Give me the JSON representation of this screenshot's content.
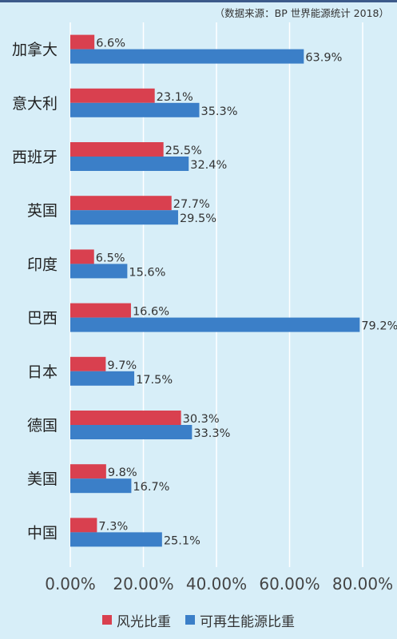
{
  "source_note": "（数据来源：BP 世界能源统计 2018）",
  "colors": {
    "wind": "#d9404f",
    "renewable": "#3b7fc8",
    "grid": "#ffffff",
    "background": "#d7eef8"
  },
  "chart_data": {
    "type": "bar",
    "orientation": "horizontal",
    "categories": [
      "加拿大",
      "意大利",
      "西班牙",
      "英国",
      "印度",
      "巴西",
      "日本",
      "德国",
      "美国",
      "中国"
    ],
    "series": [
      {
        "name": "风光比重",
        "values": [
          6.6,
          23.1,
          25.5,
          27.7,
          6.5,
          16.6,
          9.7,
          30.3,
          9.8,
          7.3
        ],
        "labels": [
          "6.6%",
          "23.1%",
          "25.5%",
          "27.7%",
          "6.5%",
          "16.6%",
          "9.7%",
          "30.3%",
          "9.8%",
          "7.3%"
        ]
      },
      {
        "name": "可再生能源比重",
        "values": [
          63.9,
          35.3,
          32.4,
          29.5,
          15.6,
          79.2,
          17.5,
          33.3,
          16.7,
          25.1
        ],
        "labels": [
          "63.9%",
          "35.3%",
          "32.4%",
          "29.5%",
          "15.6%",
          "79.2%",
          "17.5%",
          "33.3%",
          "16.7%",
          "25.1%"
        ]
      }
    ],
    "x_ticks": [
      "0.00%",
      "20.00%",
      "40.00%",
      "60.00%",
      "80.00%"
    ],
    "xlim": [
      0,
      80
    ],
    "grid": "vertical",
    "legend": "bottom-center"
  }
}
